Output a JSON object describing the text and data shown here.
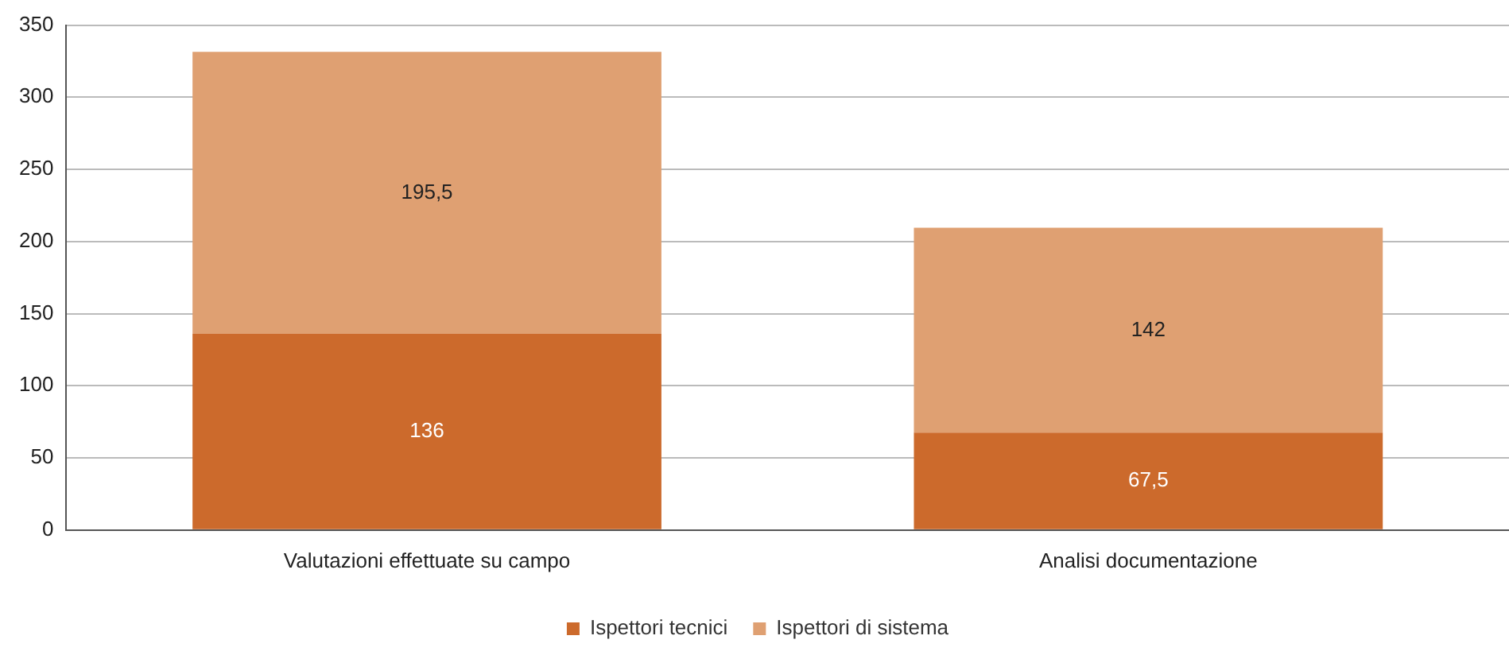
{
  "chart_data": {
    "type": "bar",
    "stacked": true,
    "categories": [
      "Valutazioni effettuate su campo",
      "Analisi documentazione"
    ],
    "series": [
      {
        "name": "Ispettori tecnici",
        "color": "#cc6a2c",
        "values": [
          136,
          67.5
        ],
        "value_labels": [
          "136",
          "67,5"
        ]
      },
      {
        "name": "Ispettori di sistema",
        "color": "#dfa072",
        "values": [
          195.5,
          142
        ],
        "value_labels": [
          "195,5",
          "142"
        ]
      }
    ],
    "ylim": [
      0,
      350
    ],
    "yticks": [
      0,
      50,
      100,
      150,
      200,
      250,
      300,
      350
    ],
    "grid": "y",
    "legend": "bottom"
  }
}
